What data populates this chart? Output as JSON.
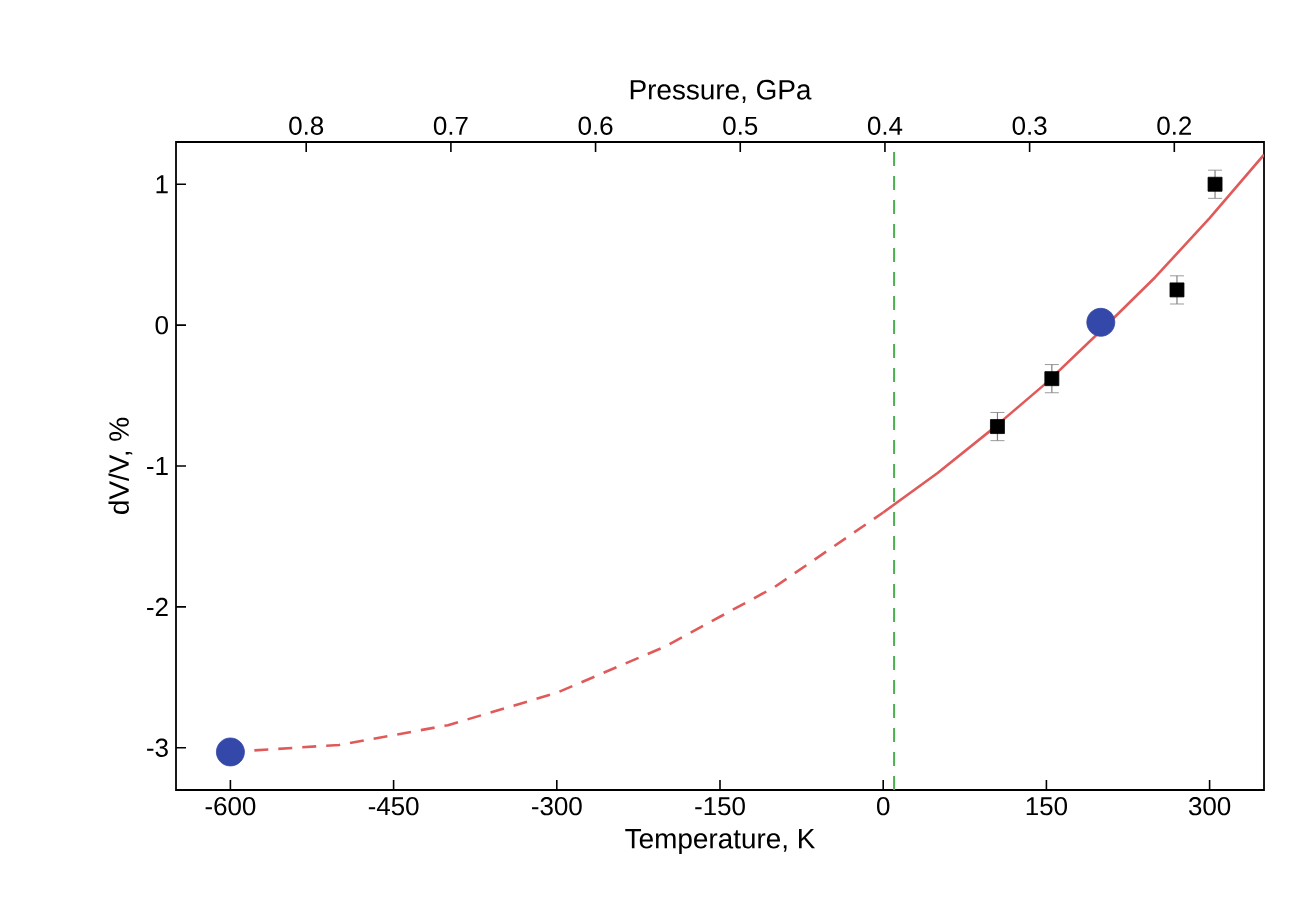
{
  "chart_data": {
    "type": "line",
    "xlabel": "Temperature, K",
    "ylabel": "dV/V, %",
    "x2label": "Pressure, GPa",
    "xlim": [
      -650,
      350
    ],
    "xticks": [
      -600,
      -450,
      -300,
      -150,
      0,
      150,
      300
    ],
    "ylim": [
      -3.3,
      1.3
    ],
    "yticks": [
      -3,
      -2,
      -1,
      0,
      1
    ],
    "x2lim": [
      0.89,
      0.138
    ],
    "x2ticks": [
      0.8,
      0.7,
      0.6,
      0.5,
      0.4,
      0.3,
      0.2
    ],
    "grid": false,
    "ref_lines": [
      {
        "axis": "x",
        "value": 10,
        "color": "#4caf50",
        "line_style": "dashed"
      }
    ],
    "series": [
      {
        "color": "#e05a5a",
        "line_style": "dashed",
        "marker": "none",
        "x": [
          -600,
          -500,
          -400,
          -300,
          -200,
          -100,
          0
        ],
        "values": [
          -3.03,
          -2.98,
          -2.84,
          -2.61,
          -2.28,
          -1.86,
          -1.33
        ]
      },
      {
        "color": "#e05a5a",
        "line_style": "solid",
        "marker": "none",
        "x": [
          0,
          50,
          100,
          150,
          200,
          250,
          300,
          350
        ],
        "values": [
          -1.33,
          -1.05,
          -0.74,
          -0.41,
          -0.04,
          0.34,
          0.76,
          1.21
        ]
      },
      {
        "type": "scatter",
        "color": "#000000",
        "marker": "square",
        "x": [
          105,
          155,
          270,
          305
        ],
        "values": [
          -0.72,
          -0.38,
          0.25,
          1.0
        ],
        "errors": [
          0.1,
          0.1,
          0.1,
          0.1
        ]
      },
      {
        "type": "scatter",
        "color": "#3348a8",
        "marker": "circle",
        "x": [
          -600,
          200
        ],
        "values": [
          -3.03,
          0.02
        ]
      }
    ]
  }
}
